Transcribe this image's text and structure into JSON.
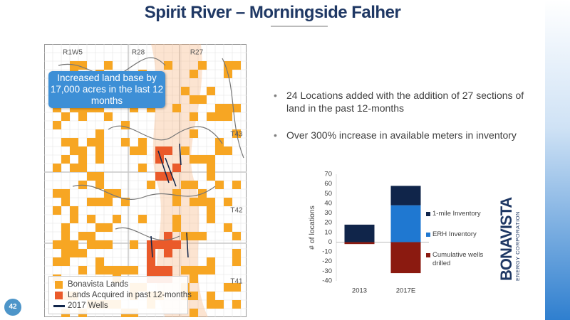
{
  "title": "Spirit River – Morningside Falher",
  "map": {
    "range_labels": [
      "R1W5",
      "R28",
      "R27"
    ],
    "township_labels": [
      "T43",
      "T42",
      "T41"
    ],
    "callout": "Increased land base by 17,000 acres in the last 12 months",
    "legend": [
      "Bonavista Lands",
      "Lands Acquired in past 12-months",
      "2017 Wells"
    ]
  },
  "bullets": [
    "24 Locations added with the addition of 27 sections of land in the past 12-months",
    "Over 300% increase in available meters in inventory"
  ],
  "chart_data": {
    "type": "stacked_bar",
    "y_label": "# of locations",
    "categories": [
      "2013",
      "2017E"
    ],
    "series": [
      {
        "name": "1-mile Inventory",
        "color": "#10254a",
        "values": [
          18,
          20
        ]
      },
      {
        "name": "ERH Inventory",
        "color": "#1f78d1",
        "values": [
          0,
          38
        ]
      },
      {
        "name": "Cumulative wells drilled",
        "color": "#8b1a10",
        "values": [
          -2,
          -32
        ]
      }
    ],
    "ylim": [
      -40,
      70
    ],
    "yticks": [
      -40,
      -30,
      -20,
      -10,
      0,
      10,
      20,
      30,
      40,
      50,
      60,
      70
    ]
  },
  "page_number": "42",
  "logo": {
    "name": "BONAVISTA",
    "tagline": "ENERGY CORPORATION"
  }
}
